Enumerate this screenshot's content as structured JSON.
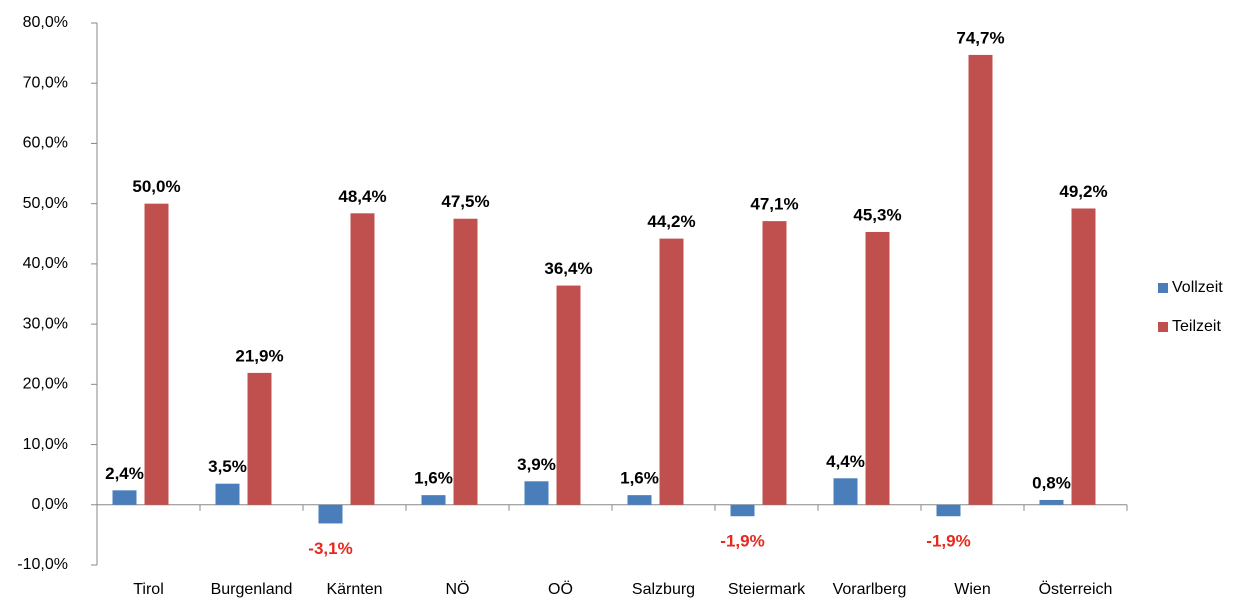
{
  "chart_data": {
    "type": "bar",
    "categories": [
      "Tirol",
      "Burgenland",
      "Kärnten",
      "NÖ",
      "OÖ",
      "Salzburg",
      "Steiermark",
      "Vorarlberg",
      "Wien",
      "Österreich"
    ],
    "series": [
      {
        "name": "Vollzeit",
        "color": "#4a7ebb",
        "values": [
          2.4,
          3.5,
          -3.1,
          1.6,
          3.9,
          1.6,
          -1.9,
          4.4,
          -1.9,
          0.8
        ],
        "value_labels": [
          "2,4%",
          "3,5%",
          "-3,1%",
          "1,6%",
          "3,9%",
          "1,6%",
          "-1,9%",
          "4,4%",
          "-1,9%",
          "0,8%"
        ]
      },
      {
        "name": "Teilzeit",
        "color": "#c0504d",
        "values": [
          50.0,
          21.9,
          48.4,
          47.5,
          36.4,
          44.2,
          47.1,
          45.3,
          74.7,
          49.2
        ],
        "value_labels": [
          "50,0%",
          "21,9%",
          "48,4%",
          "47,5%",
          "36,4%",
          "44,2%",
          "47,1%",
          "45,3%",
          "74,7%",
          "49,2%"
        ]
      }
    ],
    "ylim": [
      -10,
      80
    ],
    "yticks": [
      {
        "value": -10,
        "label": "-10,0%"
      },
      {
        "value": 0,
        "label": "0,0%"
      },
      {
        "value": 10,
        "label": "10,0%"
      },
      {
        "value": 20,
        "label": "20,0%"
      },
      {
        "value": 30,
        "label": "30,0%"
      },
      {
        "value": 40,
        "label": "40,0%"
      },
      {
        "value": 50,
        "label": "50,0%"
      },
      {
        "value": 60,
        "label": "60,0%"
      },
      {
        "value": 70,
        "label": "70,0%"
      },
      {
        "value": 80,
        "label": "80,0%"
      }
    ],
    "legend": "right",
    "grid": false
  }
}
